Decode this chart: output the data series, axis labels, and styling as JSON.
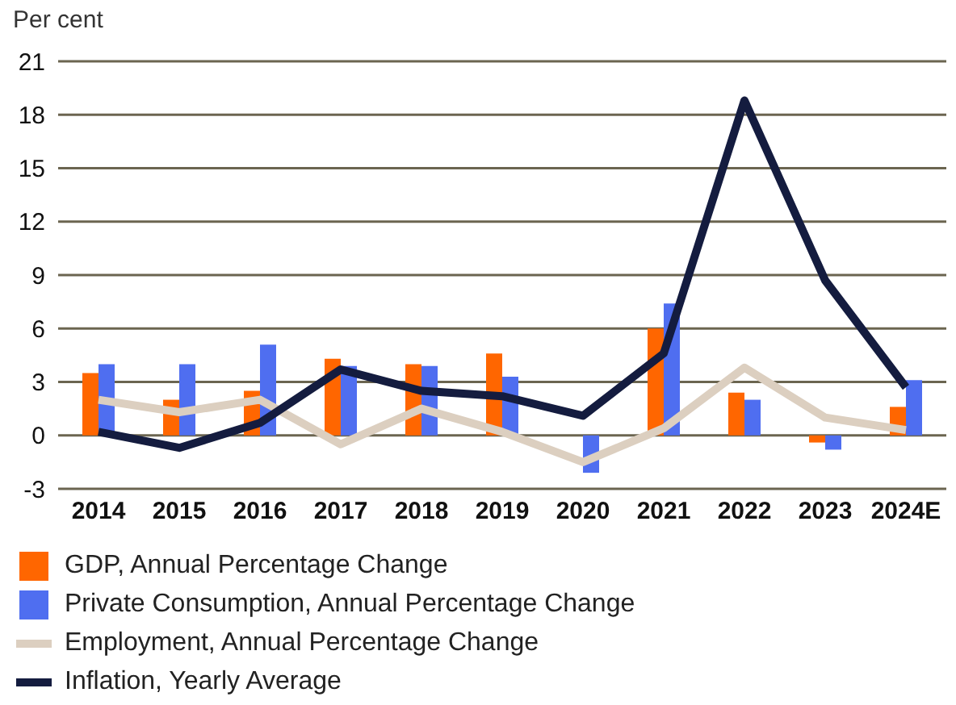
{
  "chart_data": {
    "type": "bar",
    "ylabel": "Per cent",
    "categories": [
      "2014",
      "2015",
      "2016",
      "2017",
      "2018",
      "2019",
      "2020",
      "2021",
      "2022",
      "2023",
      "2024E"
    ],
    "series": [
      {
        "name": "GDP, Annual Percentage Change",
        "color": "#ff6600",
        "values": [
          3.5,
          2.0,
          2.5,
          4.3,
          4.0,
          4.6,
          0,
          6.0,
          2.4,
          -0.4,
          1.6
        ]
      },
      {
        "name": "Private Consumption, Annual Percentage Change",
        "color": "#4f6ef0",
        "values": [
          4.0,
          4.0,
          5.1,
          3.9,
          3.9,
          3.3,
          -2.1,
          7.4,
          2.0,
          -0.8,
          3.1
        ]
      },
      {
        "name": "Employment, Annual Percentage Change",
        "type": "line",
        "color": "#dccfc0",
        "values": [
          2.0,
          1.3,
          2.0,
          -0.5,
          1.5,
          0.2,
          -1.5,
          0.4,
          3.8,
          1.0,
          0.3
        ]
      },
      {
        "name": "Inflation, Yearly Average",
        "type": "line",
        "color": "#141c3f",
        "values": [
          0.2,
          -0.7,
          0.7,
          3.7,
          2.5,
          2.2,
          1.1,
          4.6,
          18.8,
          8.7,
          2.7
        ]
      }
    ],
    "ylim": [
      -3,
      21
    ],
    "yticks": [
      -3,
      0,
      3,
      6,
      9,
      12,
      15,
      18,
      21
    ],
    "grid": "y",
    "legend": "bottom",
    "marker": "none"
  }
}
